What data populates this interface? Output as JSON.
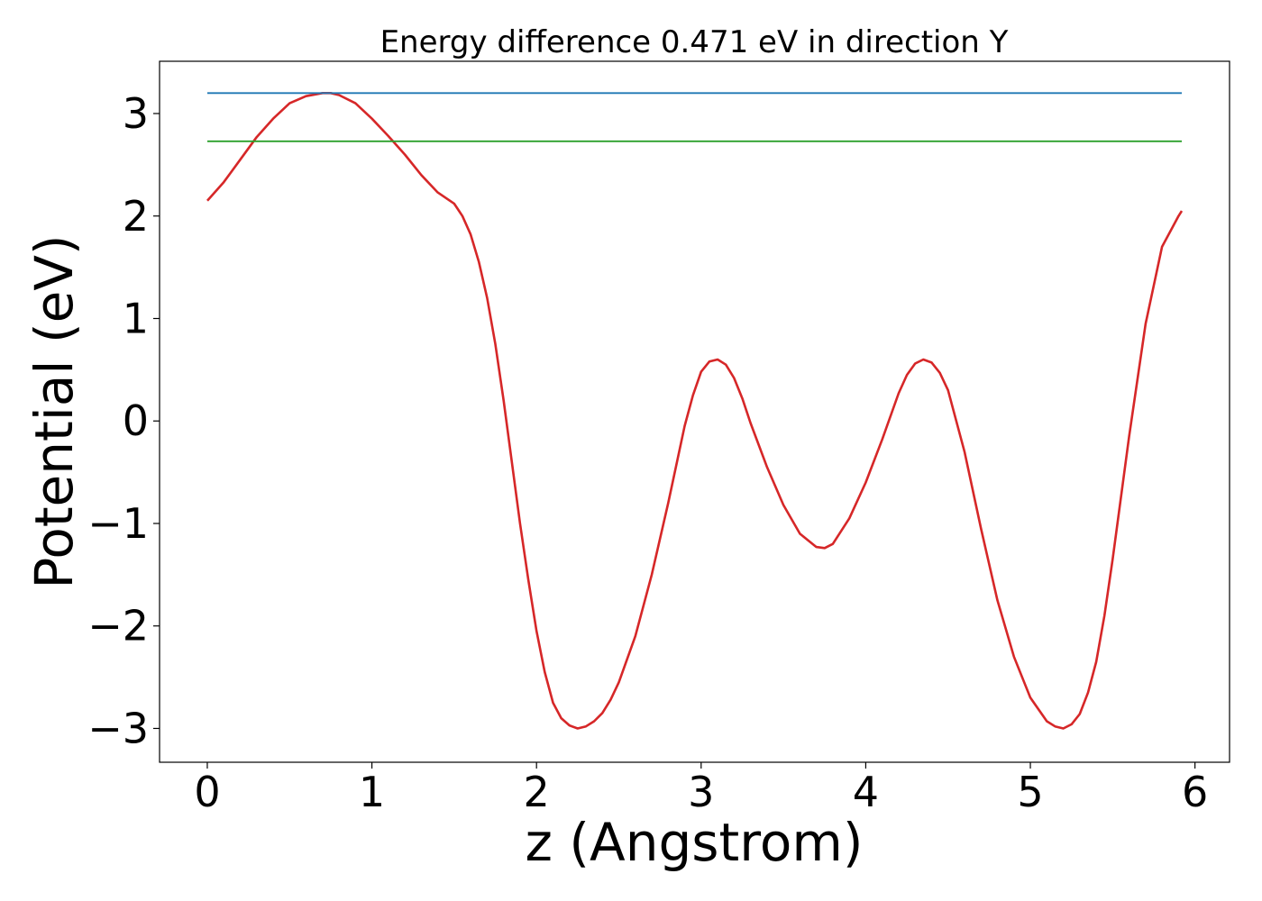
{
  "chart_data": {
    "type": "line",
    "title": "Energy difference 0.471 eV in direction Y",
    "xlabel": "z (Angstrom)",
    "ylabel": "Potential (eV)",
    "xlim": [
      -0.29,
      6.21
    ],
    "ylim": [
      -3.33,
      3.51
    ],
    "grid": false,
    "x_ticks": [
      0,
      1,
      2,
      3,
      4,
      5,
      6
    ],
    "x_tick_labels": [
      "0",
      "1",
      "2",
      "3",
      "4",
      "5",
      "6"
    ],
    "y_ticks": [
      -3,
      -2,
      -1,
      0,
      1,
      2,
      3
    ],
    "y_tick_labels": [
      "−3",
      "−2",
      "−1",
      "0",
      "1",
      "2",
      "3"
    ],
    "series": [
      {
        "color": "#d62728",
        "x": [
          0,
          0.1,
          0.2,
          0.3,
          0.4,
          0.5,
          0.6,
          0.7,
          0.75,
          0.8,
          0.9,
          1.0,
          1.1,
          1.2,
          1.3,
          1.4,
          1.5,
          1.55,
          1.6,
          1.65,
          1.7,
          1.75,
          1.8,
          1.85,
          1.9,
          1.95,
          2.0,
          2.05,
          2.1,
          2.15,
          2.2,
          2.25,
          2.3,
          2.35,
          2.4,
          2.45,
          2.5,
          2.6,
          2.7,
          2.8,
          2.9,
          2.95,
          3.0,
          3.05,
          3.1,
          3.15,
          3.2,
          3.25,
          3.3,
          3.4,
          3.5,
          3.6,
          3.7,
          3.75,
          3.8,
          3.9,
          4.0,
          4.1,
          4.2,
          4.25,
          4.3,
          4.35,
          4.4,
          4.45,
          4.5,
          4.6,
          4.7,
          4.8,
          4.9,
          5.0,
          5.1,
          5.15,
          5.2,
          5.25,
          5.3,
          5.35,
          5.4,
          5.45,
          5.5,
          5.6,
          5.7,
          5.8,
          5.9,
          5.92
        ],
        "y": [
          2.15,
          2.33,
          2.55,
          2.77,
          2.95,
          3.1,
          3.17,
          3.2,
          3.2,
          3.18,
          3.1,
          2.95,
          2.78,
          2.6,
          2.4,
          2.23,
          2.12,
          2.0,
          1.82,
          1.55,
          1.2,
          0.75,
          0.2,
          -0.4,
          -1.0,
          -1.55,
          -2.05,
          -2.45,
          -2.75,
          -2.9,
          -2.97,
          -3.0,
          -2.98,
          -2.93,
          -2.85,
          -2.72,
          -2.55,
          -2.1,
          -1.5,
          -0.8,
          -0.05,
          0.25,
          0.48,
          0.58,
          0.6,
          0.55,
          0.42,
          0.22,
          -0.02,
          -0.45,
          -0.82,
          -1.1,
          -1.23,
          -1.24,
          -1.2,
          -0.95,
          -0.6,
          -0.18,
          0.27,
          0.45,
          0.56,
          0.6,
          0.57,
          0.47,
          0.3,
          -0.3,
          -1.05,
          -1.75,
          -2.3,
          -2.7,
          -2.93,
          -2.98,
          -3.0,
          -2.96,
          -2.86,
          -2.65,
          -2.35,
          -1.9,
          -1.35,
          -0.15,
          0.95,
          1.7,
          2.0,
          2.05
        ]
      },
      {
        "color": "#1f77b4",
        "x": [
          0,
          5.92
        ],
        "y": [
          3.2,
          3.2
        ]
      },
      {
        "color": "#2ca02c",
        "x": [
          0,
          5.92
        ],
        "y": [
          2.729,
          2.729
        ]
      }
    ]
  }
}
